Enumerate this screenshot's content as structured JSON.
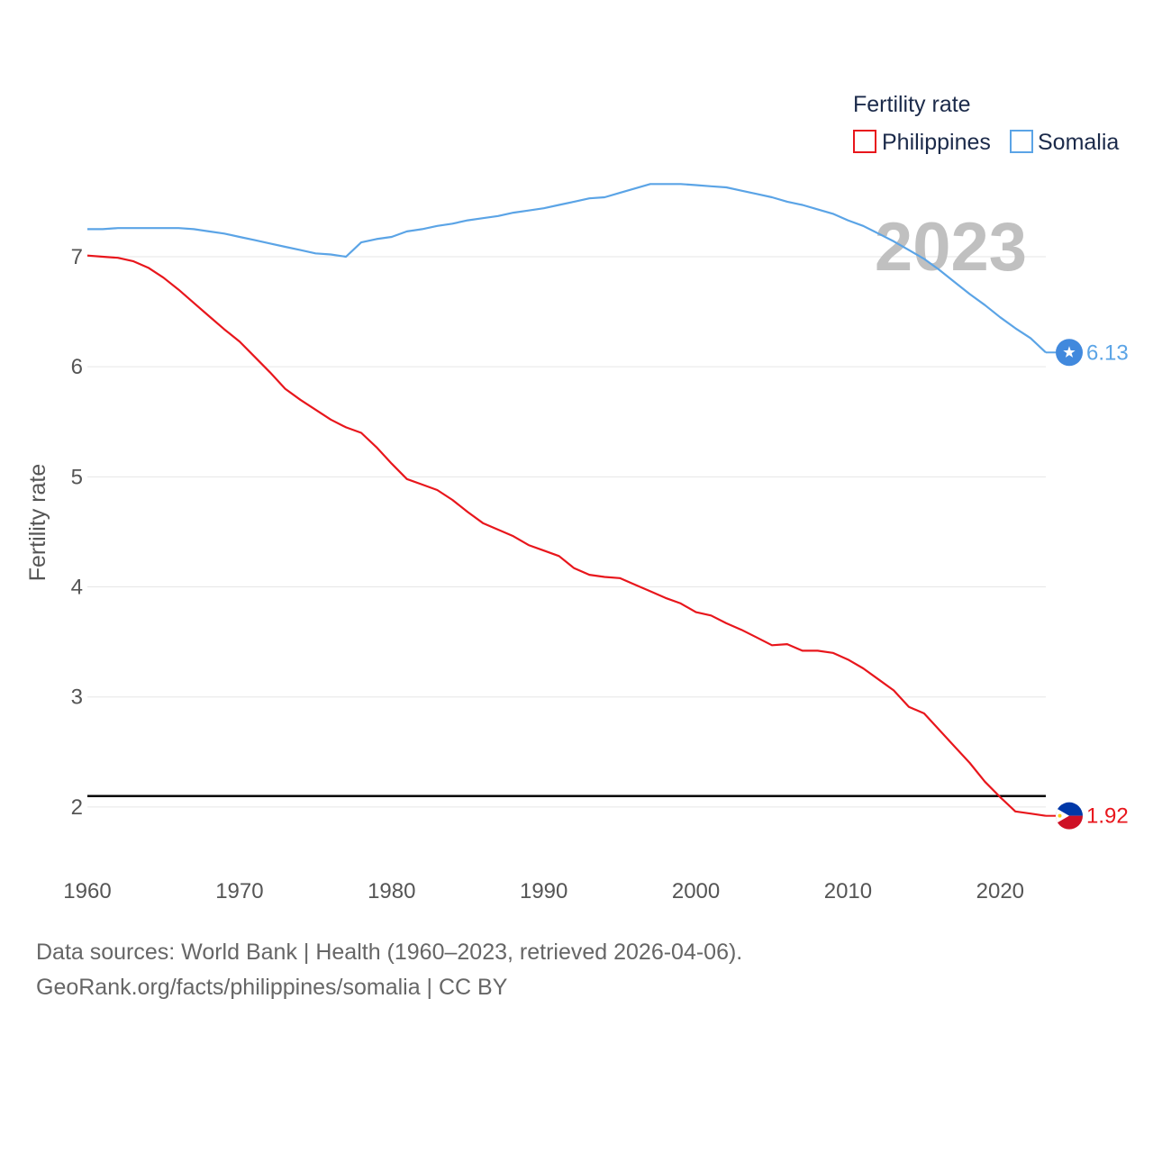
{
  "chart_data": {
    "type": "line",
    "title": "Fertility rate",
    "ylabel": "Fertility rate",
    "xlabel": "",
    "xlim": [
      1960,
      2023
    ],
    "ylim": [
      1.5,
      7.9
    ],
    "x_ticks": [
      1960,
      1970,
      1980,
      1990,
      2000,
      2010,
      2020
    ],
    "y_ticks": [
      2,
      3,
      4,
      5,
      6,
      7
    ],
    "grid": true,
    "legend_position": "top-right",
    "current_year": "2023",
    "reference_line": {
      "y": 2.1,
      "color": "#000000"
    },
    "x": [
      1960,
      1961,
      1962,
      1963,
      1964,
      1965,
      1966,
      1967,
      1968,
      1969,
      1970,
      1971,
      1972,
      1973,
      1974,
      1975,
      1976,
      1977,
      1978,
      1979,
      1980,
      1981,
      1982,
      1983,
      1984,
      1985,
      1986,
      1987,
      1988,
      1989,
      1990,
      1991,
      1992,
      1993,
      1994,
      1995,
      1996,
      1997,
      1998,
      1999,
      2000,
      2001,
      2002,
      2003,
      2004,
      2005,
      2006,
      2007,
      2008,
      2009,
      2010,
      2011,
      2012,
      2013,
      2014,
      2015,
      2016,
      2017,
      2018,
      2019,
      2020,
      2021,
      2022,
      2023
    ],
    "series": [
      {
        "name": "Philippines",
        "color": "#e8161c",
        "end_label": "1.92",
        "flag": "philippines-flag-icon",
        "values": [
          7.01,
          7.0,
          6.99,
          6.96,
          6.9,
          6.81,
          6.7,
          6.58,
          6.46,
          6.34,
          6.23,
          6.09,
          5.95,
          5.8,
          5.7,
          5.61,
          5.52,
          5.45,
          5.4,
          5.27,
          5.12,
          4.98,
          4.93,
          4.88,
          4.79,
          4.68,
          4.58,
          4.52,
          4.46,
          4.38,
          4.33,
          4.28,
          4.17,
          4.11,
          4.09,
          4.08,
          4.02,
          3.96,
          3.9,
          3.85,
          3.77,
          3.74,
          3.67,
          3.61,
          3.54,
          3.47,
          3.48,
          3.42,
          3.42,
          3.4,
          3.34,
          3.26,
          3.16,
          3.06,
          2.91,
          2.85,
          2.7,
          2.55,
          2.4,
          2.23,
          2.09,
          1.96,
          1.94,
          1.92
        ]
      },
      {
        "name": "Somalia",
        "color": "#5ba4e6",
        "end_label": "6.13",
        "flag": "somalia-flag-icon",
        "values": [
          7.25,
          7.25,
          7.26,
          7.26,
          7.26,
          7.26,
          7.26,
          7.25,
          7.23,
          7.21,
          7.18,
          7.15,
          7.12,
          7.09,
          7.06,
          7.03,
          7.02,
          7.0,
          7.13,
          7.16,
          7.18,
          7.23,
          7.25,
          7.28,
          7.3,
          7.33,
          7.35,
          7.37,
          7.4,
          7.42,
          7.44,
          7.47,
          7.5,
          7.53,
          7.54,
          7.58,
          7.62,
          7.66,
          7.66,
          7.66,
          7.65,
          7.64,
          7.63,
          7.6,
          7.57,
          7.54,
          7.5,
          7.47,
          7.43,
          7.39,
          7.33,
          7.28,
          7.21,
          7.14,
          7.06,
          6.98,
          6.88,
          6.77,
          6.66,
          6.56,
          6.45,
          6.35,
          6.26,
          6.13
        ]
      }
    ]
  },
  "footer": {
    "line1": "Data sources: World Bank | Health (1960–2023, retrieved 2026-04-06).",
    "line2": "GeoRank.org/facts/philippines/somalia | CC BY"
  }
}
